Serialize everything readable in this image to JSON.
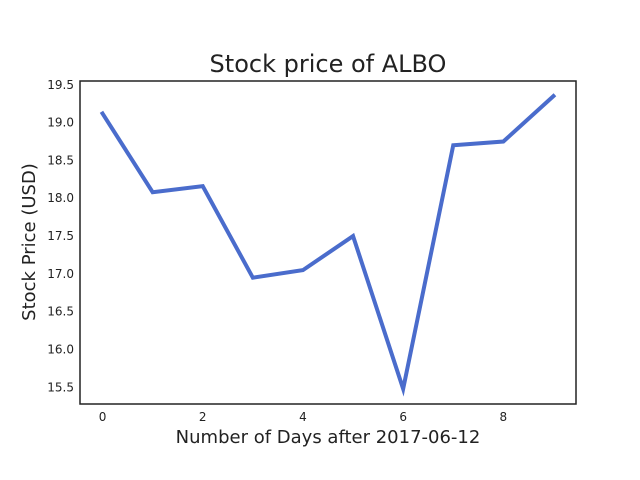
{
  "chart_data": {
    "type": "line",
    "title": "Stock price of ALBO",
    "xlabel": "Number of Days after 2017-06-12",
    "ylabel": "Stock Price (USD)",
    "x": [
      0,
      1,
      2,
      3,
      4,
      5,
      6,
      7,
      8,
      9
    ],
    "series": [
      {
        "values": [
          19.12,
          18.08,
          18.16,
          16.95,
          17.05,
          17.5,
          15.48,
          18.7,
          18.75,
          19.35
        ],
        "color": "#4a6ccc"
      }
    ],
    "xlim": [
      -0.45,
      9.45
    ],
    "ylim": [
      15.28,
      19.55
    ],
    "xticks": [
      0,
      2,
      4,
      6,
      8
    ],
    "xtick_labels": [
      "0",
      "2",
      "4",
      "6",
      "8"
    ],
    "yticks": [
      15.5,
      16.0,
      16.5,
      17.0,
      17.5,
      18.0,
      18.5,
      19.0,
      19.5
    ],
    "ytick_labels": [
      "15.5",
      "16.0",
      "16.5",
      "17.0",
      "17.5",
      "18.0",
      "18.5",
      "19.0",
      "19.5"
    ],
    "grid": false,
    "legend": "none"
  }
}
